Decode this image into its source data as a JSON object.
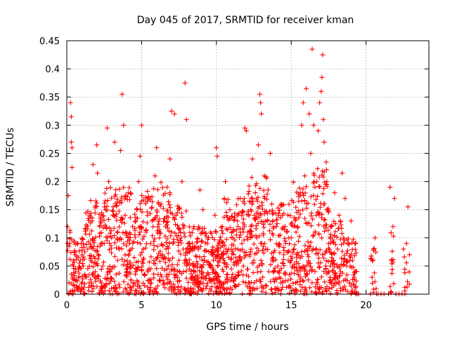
{
  "chart_data": {
    "type": "scatter",
    "title": "Day 045 of 2017, SRMTID for receiver kman",
    "xlabel": "GPS time / hours",
    "ylabel": "SRMTID / TECUs",
    "xlim": [
      0,
      24.2
    ],
    "ylim": [
      0,
      0.45
    ],
    "x_ticks": [
      0,
      5,
      10,
      15,
      20
    ],
    "x_tick_labels": [
      "0",
      "5",
      "10",
      "15",
      "20"
    ],
    "y_ticks": [
      0,
      0.05,
      0.1,
      0.15,
      0.2,
      0.25,
      0.3,
      0.35,
      0.4,
      0.45
    ],
    "y_tick_labels": [
      "0",
      "0.05",
      "0.1",
      "0.15",
      "0.2",
      "0.25",
      "0.3",
      "0.35",
      "0.4",
      "0.45"
    ],
    "grid": true,
    "marker": "+",
    "color": "#ff0000",
    "series": [
      {
        "name": "SRMTID",
        "points": [
          [
            0.05,
            0.12
          ],
          [
            0.1,
            0.175
          ],
          [
            0.15,
            0.02
          ],
          [
            0.2,
            0.09
          ],
          [
            0.25,
            0.34
          ],
          [
            0.3,
            0.27
          ],
          [
            0.3,
            0.315
          ],
          [
            0.35,
            0.225
          ],
          [
            0.35,
            0.26
          ],
          [
            0.4,
            0.03
          ],
          [
            0.45,
            0.05
          ],
          [
            0.5,
            0.015
          ],
          [
            0.55,
            0.07
          ],
          [
            0.6,
            0.04
          ],
          [
            0.7,
            0.09
          ],
          [
            0.8,
            0.03
          ],
          [
            0.9,
            0.06
          ],
          [
            1.0,
            0.01
          ],
          [
            1.1,
            0.05
          ],
          [
            1.2,
            0.075
          ],
          [
            1.3,
            0.03
          ],
          [
            1.4,
            0.08
          ],
          [
            1.5,
            0.02
          ],
          [
            1.6,
            0.06
          ],
          [
            1.7,
            0.13
          ],
          [
            1.75,
            0.23
          ],
          [
            1.8,
            0.095
          ],
          [
            1.9,
            0.04
          ],
          [
            2.0,
            0.265
          ],
          [
            2.05,
            0.215
          ],
          [
            2.1,
            0.07
          ],
          [
            2.2,
            0.12
          ],
          [
            2.3,
            0.02
          ],
          [
            2.4,
            0.05
          ],
          [
            2.5,
            0.09
          ],
          [
            2.6,
            0.15
          ],
          [
            2.7,
            0.295
          ],
          [
            2.8,
            0.2
          ],
          [
            2.9,
            0.04
          ],
          [
            3.0,
            0.1
          ],
          [
            3.1,
            0.155
          ],
          [
            3.2,
            0.27
          ],
          [
            3.3,
            0.035
          ],
          [
            3.4,
            0.06
          ],
          [
            3.5,
            0.08
          ],
          [
            3.6,
            0.255
          ],
          [
            3.7,
            0.355
          ],
          [
            3.8,
            0.3
          ],
          [
            3.9,
            0.14
          ],
          [
            4.0,
            0.05
          ],
          [
            4.1,
            0.18
          ],
          [
            4.2,
            0.09
          ],
          [
            4.3,
            0.025
          ],
          [
            4.4,
            0.12
          ],
          [
            4.5,
            0.065
          ],
          [
            4.6,
            0.04
          ],
          [
            4.7,
            0.15
          ],
          [
            4.8,
            0.2
          ],
          [
            4.9,
            0.245
          ],
          [
            5.0,
            0.3
          ],
          [
            5.1,
            0.08
          ],
          [
            5.2,
            0.015
          ],
          [
            5.3,
            0.11
          ],
          [
            5.4,
            0.17
          ],
          [
            5.5,
            0.045
          ],
          [
            5.6,
            0.09
          ],
          [
            5.7,
            0.13
          ],
          [
            5.8,
            0.055
          ],
          [
            5.9,
            0.21
          ],
          [
            6.0,
            0.26
          ],
          [
            6.1,
            0.035
          ],
          [
            6.2,
            0.1
          ],
          [
            6.3,
            0.16
          ],
          [
            6.4,
            0.07
          ],
          [
            6.5,
            0.02
          ],
          [
            6.6,
            0.12
          ],
          [
            6.7,
            0.19
          ],
          [
            6.8,
            0.05
          ],
          [
            6.9,
            0.24
          ],
          [
            7.0,
            0.325
          ],
          [
            7.1,
            0.09
          ],
          [
            7.2,
            0.32
          ],
          [
            7.3,
            0.14
          ],
          [
            7.4,
            0.03
          ],
          [
            7.5,
            0.06
          ],
          [
            7.6,
            0.11
          ],
          [
            7.7,
            0.2
          ],
          [
            7.8,
            0.04
          ],
          [
            7.9,
            0.375
          ],
          [
            8.0,
            0.31
          ],
          [
            8.1,
            0.01
          ],
          [
            8.2,
            0.075
          ],
          [
            8.3,
            0.005
          ],
          [
            8.4,
            0.03
          ],
          [
            8.5,
            0.12
          ],
          [
            8.6,
            0.05
          ],
          [
            8.7,
            0.02
          ],
          [
            8.8,
            0.08
          ],
          [
            8.9,
            0.185
          ],
          [
            9.0,
            0.04
          ],
          [
            9.1,
            0.15
          ],
          [
            9.2,
            0.06
          ],
          [
            9.3,
            0.01
          ],
          [
            9.4,
            0.09
          ],
          [
            9.5,
            0.035
          ],
          [
            9.6,
            0.11
          ],
          [
            9.7,
            0.07
          ],
          [
            9.8,
            0.025
          ],
          [
            9.9,
            0.14
          ],
          [
            10.0,
            0.26
          ],
          [
            10.05,
            0.245
          ],
          [
            10.1,
            0.05
          ],
          [
            10.2,
            0.09
          ],
          [
            10.3,
            0.02
          ],
          [
            10.4,
            0.12
          ],
          [
            10.5,
            0.06
          ],
          [
            10.6,
            0.2
          ],
          [
            10.7,
            0.03
          ],
          [
            10.8,
            0.08
          ],
          [
            10.9,
            0.15
          ],
          [
            11.0,
            0.045
          ],
          [
            11.1,
            0.1
          ],
          [
            11.2,
            0.015
          ],
          [
            11.3,
            0.065
          ],
          [
            11.4,
            0.13
          ],
          [
            11.5,
            0.035
          ],
          [
            11.6,
            0.17
          ],
          [
            11.7,
            0.09
          ],
          [
            11.8,
            0.05
          ],
          [
            11.9,
            0.295
          ],
          [
            12.0,
            0.29
          ],
          [
            12.1,
            0.11
          ],
          [
            12.2,
            0.02
          ],
          [
            12.3,
            0.15
          ],
          [
            12.4,
            0.24
          ],
          [
            12.5,
            0.06
          ],
          [
            12.6,
            0.18
          ],
          [
            12.7,
            0.1
          ],
          [
            12.8,
            0.265
          ],
          [
            12.9,
            0.355
          ],
          [
            12.95,
            0.34
          ],
          [
            13.0,
            0.32
          ],
          [
            13.1,
            0.03
          ],
          [
            13.2,
            0.21
          ],
          [
            13.3,
            0.08
          ],
          [
            13.4,
            0.13
          ],
          [
            13.5,
            0.04
          ],
          [
            13.6,
            0.25
          ],
          [
            13.7,
            0.16
          ],
          [
            13.8,
            0.065
          ],
          [
            13.9,
            0.01
          ],
          [
            14.0,
            0.12
          ],
          [
            14.1,
            0.05
          ],
          [
            14.2,
            0.09
          ],
          [
            14.3,
            0.02
          ],
          [
            14.4,
            0.14
          ],
          [
            14.5,
            0.07
          ],
          [
            14.6,
            0.035
          ],
          [
            14.7,
            0.11
          ],
          [
            14.8,
            0.06
          ],
          [
            14.9,
            0.015
          ],
          [
            15.0,
            0.1
          ],
          [
            15.1,
            0.05
          ],
          [
            15.2,
            0.08
          ],
          [
            15.3,
            0.02
          ],
          [
            15.4,
            0.12
          ],
          [
            15.5,
            0.165
          ],
          [
            15.6,
            0.045
          ],
          [
            15.7,
            0.3
          ],
          [
            15.8,
            0.34
          ],
          [
            15.9,
            0.21
          ],
          [
            16.0,
            0.365
          ],
          [
            16.1,
            0.07
          ],
          [
            16.2,
            0.32
          ],
          [
            16.3,
            0.25
          ],
          [
            16.4,
            0.435
          ],
          [
            16.5,
            0.3
          ],
          [
            16.6,
            0.11
          ],
          [
            16.7,
            0.2
          ],
          [
            16.8,
            0.29
          ],
          [
            16.9,
            0.34
          ],
          [
            17.0,
            0.36
          ],
          [
            17.05,
            0.385
          ],
          [
            17.1,
            0.425
          ],
          [
            17.15,
            0.31
          ],
          [
            17.2,
            0.27
          ],
          [
            17.3,
            0.05
          ],
          [
            17.4,
            0.15
          ],
          [
            17.5,
            0.09
          ],
          [
            17.6,
            0.03
          ],
          [
            17.7,
            0.12
          ],
          [
            17.8,
            0.06
          ],
          [
            17.9,
            0.18
          ],
          [
            18.0,
            0.02
          ],
          [
            18.1,
            0.08
          ],
          [
            18.2,
            0.14
          ],
          [
            18.3,
            0.04
          ],
          [
            18.4,
            0.215
          ],
          [
            18.5,
            0.1
          ],
          [
            18.6,
            0.17
          ],
          [
            18.7,
            0.05
          ],
          [
            18.8,
            0.09
          ],
          [
            18.9,
            0.02
          ],
          [
            19.0,
            0.13
          ],
          [
            19.1,
            0.06
          ],
          [
            19.2,
            0.03
          ],
          [
            19.3,
            0.09
          ],
          [
            19.4,
            0.0
          ],
          [
            19.5,
            0.0
          ],
          [
            20.3,
            0.0
          ],
          [
            20.4,
            0.03
          ],
          [
            20.5,
            0.08
          ],
          [
            20.6,
            0.1
          ],
          [
            20.7,
            0.0
          ],
          [
            20.8,
            0.0
          ],
          [
            21.0,
            0.0
          ],
          [
            21.2,
            0.0
          ],
          [
            21.5,
            0.0
          ],
          [
            21.6,
            0.19
          ],
          [
            21.7,
            0.06
          ],
          [
            21.8,
            0.12
          ],
          [
            21.9,
            0.17
          ],
          [
            22.0,
            0.0
          ],
          [
            22.2,
            0.0
          ],
          [
            22.4,
            0.0
          ],
          [
            22.5,
            0.08
          ],
          [
            22.6,
            0.0
          ],
          [
            22.7,
            0.09
          ],
          [
            22.8,
            0.155
          ],
          [
            22.9,
            0.07
          ]
        ]
      }
    ],
    "cluster_regions": [
      [
        0.0,
        0.35,
        0.0,
        0.12,
        14
      ],
      [
        0.35,
        1.2,
        0.0,
        0.1,
        70
      ],
      [
        1.2,
        2.5,
        0.0,
        0.17,
        110
      ],
      [
        2.5,
        4.0,
        0.0,
        0.19,
        130
      ],
      [
        4.0,
        5.5,
        0.0,
        0.19,
        130
      ],
      [
        5.5,
        7.0,
        0.0,
        0.2,
        130
      ],
      [
        7.0,
        8.0,
        0.0,
        0.16,
        85
      ],
      [
        8.0,
        9.0,
        0.0,
        0.12,
        95
      ],
      [
        9.0,
        10.5,
        0.0,
        0.12,
        140
      ],
      [
        10.5,
        12.0,
        0.0,
        0.17,
        130
      ],
      [
        12.0,
        13.5,
        0.0,
        0.21,
        130
      ],
      [
        13.5,
        15.0,
        0.0,
        0.16,
        110
      ],
      [
        15.0,
        16.5,
        0.0,
        0.2,
        130
      ],
      [
        16.5,
        17.5,
        0.0,
        0.24,
        100
      ],
      [
        17.5,
        18.5,
        0.0,
        0.13,
        85
      ],
      [
        18.5,
        19.4,
        0.0,
        0.1,
        60
      ],
      [
        20.3,
        20.7,
        0.0,
        0.09,
        14
      ],
      [
        21.6,
        21.9,
        0.0,
        0.11,
        14
      ],
      [
        22.5,
        22.9,
        0.0,
        0.08,
        10
      ]
    ]
  }
}
